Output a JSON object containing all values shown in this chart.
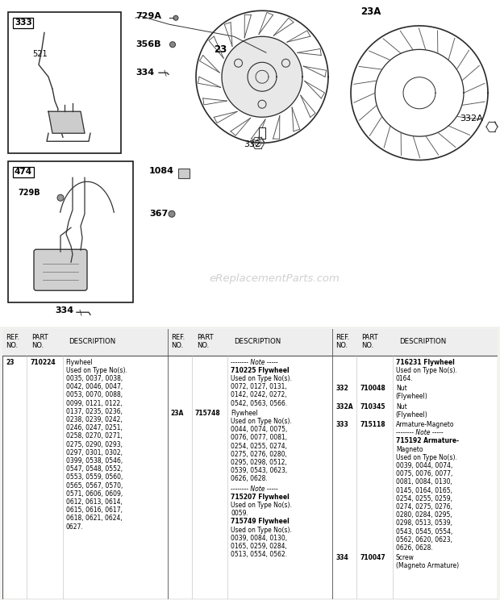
{
  "bg_color": "#f2f2ee",
  "watermark": "eReplacementParts.com",
  "col1_entries": [
    {
      "ref": "23",
      "part": "710224",
      "desc": "Flywheel\nUsed on Type No(s).\n0035, 0037, 0038,\n0042, 0046, 0047,\n0053, 0070, 0088,\n0099, 0121, 0122,\n0137, 0235, 0236,\n0238, 0239, 0242,\n0246, 0247, 0251,\n0258, 0270, 0271,\n0275, 0290, 0293,\n0297, 0301, 0302,\n0399, 0538, 0546,\n0547, 0548, 0552,\n0553, 0559, 0560,\n0565, 0567, 0570,\n0571, 0606, 0609,\n0612, 0613, 0614,\n0615, 0616, 0617,\n0618, 0621, 0624,\n0627."
    }
  ],
  "col2_entries": [
    {
      "ref": "",
      "part": "",
      "desc": "-------- Note -----\n710225 Flywheel\nUsed on Type No(s).\n0072, 0127, 0131,\n0142, 0242, 0272,\n0542, 0563, 0566."
    },
    {
      "ref": "23A",
      "part": "715748",
      "desc": "Flywheel\nUsed on Type No(s).\n0044, 0074, 0075,\n0076, 0077, 0081,\n0254, 0255, 0274,\n0275, 0276, 0280,\n0295, 0298, 0512,\n0539, 0543, 0623,\n0626, 0628."
    },
    {
      "ref": "",
      "part": "",
      "desc": "-------- Note -----\n715207 Flywheel\nUsed on Type No(s).\n0059.\n715749 Flywheel\nUsed on Type No(s).\n0039, 0084, 0130,\n0165, 0259, 0284,\n0513, 0554, 0562."
    }
  ],
  "col3_entries": [
    {
      "ref": "",
      "part": "",
      "desc": "716231 Flywheel\nUsed on Type No(s).\n0164."
    },
    {
      "ref": "332",
      "part": "710048",
      "desc": "Nut\n(Flywheel)"
    },
    {
      "ref": "332A",
      "part": "710345",
      "desc": "Nut\n(Flywheel)"
    },
    {
      "ref": "333",
      "part": "715118",
      "desc": "Armature-Magneto\n-------- Note -----\n715192 Armature-\nMagneto\nUsed on Type No(s).\n0039, 0044, 0074,\n0075, 0076, 0077,\n0081, 0084, 0130,\n0145, 0164, 0165,\n0254, 0255, 0259,\n0274, 0275, 0276,\n0280, 0284, 0295,\n0298, 0513, 0539,\n0543, 0545, 0554,\n0562, 0620, 0623,\n0626, 0628."
    },
    {
      "ref": "334",
      "part": "710047",
      "desc": "Screw\n(Magneto Armature)"
    }
  ]
}
